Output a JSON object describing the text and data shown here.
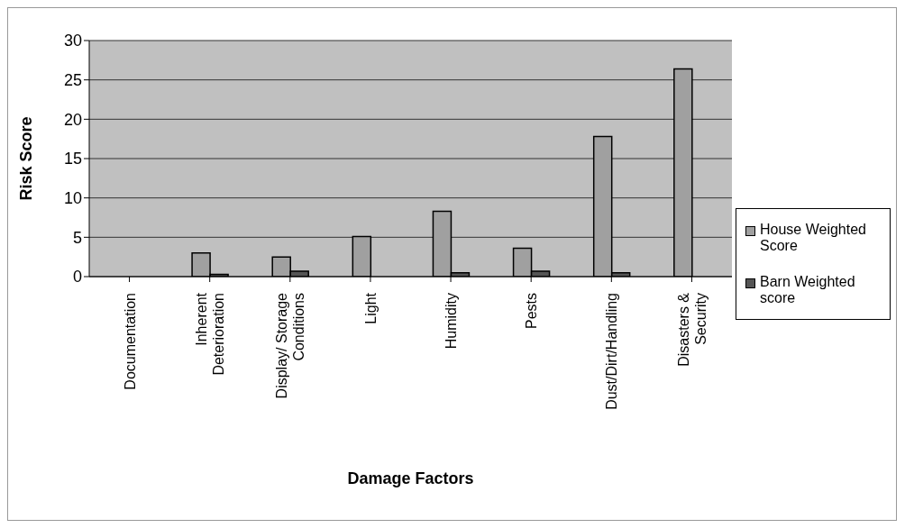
{
  "chart_data": {
    "type": "bar",
    "xlabel": "Damage Factors",
    "ylabel": "Risk Score",
    "categories": [
      "Documentation",
      "Inherent Deterioration",
      "Display/ Storage Conditions",
      "Light",
      "Humidity",
      "Pests",
      "Dust/Dirt/Handling",
      "Disasters & Security"
    ],
    "series": [
      {
        "name": "House Weighted Score",
        "color": "#a0a0a0",
        "values": [
          0,
          3.0,
          2.5,
          5.1,
          8.3,
          3.6,
          17.8,
          26.4
        ]
      },
      {
        "name": "Barn Weighted score",
        "color": "#555555",
        "values": [
          0,
          0.3,
          0.7,
          0,
          0.5,
          0.7,
          0.5,
          0
        ]
      }
    ],
    "ylim": [
      0,
      30
    ],
    "yticks": [
      0,
      5,
      10,
      15,
      20,
      25,
      30
    ],
    "grid": "y",
    "legend": "right"
  }
}
